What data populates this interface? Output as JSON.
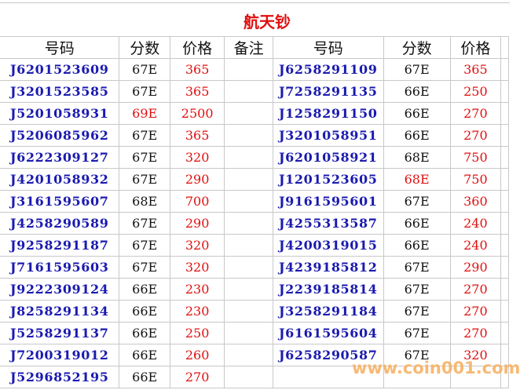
{
  "title": "航天钞",
  "headers": {
    "code": "号码",
    "score": "分数",
    "price": "价格",
    "note": "备注"
  },
  "left": [
    {
      "code": "J6201523609",
      "score": "67E",
      "price": "365"
    },
    {
      "code": "J3201523585",
      "score": "67E",
      "price": "365"
    },
    {
      "code": "J5201058931",
      "score": "69E",
      "price": "2500",
      "score_red": true
    },
    {
      "code": "J5206085962",
      "score": "67E",
      "price": "365"
    },
    {
      "code": "J6222309127",
      "score": "67E",
      "price": "320"
    },
    {
      "code": "J4201058932",
      "score": "67E",
      "price": "290"
    },
    {
      "code": "J3161595607",
      "score": "68E",
      "price": "700"
    },
    {
      "code": "J4258290589",
      "score": "67E",
      "price": "290"
    },
    {
      "code": "J9258291187",
      "score": "67E",
      "price": "320"
    },
    {
      "code": "J7161595603",
      "score": "67E",
      "price": "320"
    },
    {
      "code": "J9222309124",
      "score": "66E",
      "price": "230"
    },
    {
      "code": "J8258291134",
      "score": "66E",
      "price": "230"
    },
    {
      "code": "J5258291137",
      "score": "66E",
      "price": "250"
    },
    {
      "code": "J7200319012",
      "score": "66E",
      "price": "260"
    },
    {
      "code": "J5296852195",
      "score": "66E",
      "price": "270"
    }
  ],
  "right": [
    {
      "code": "J6258291109",
      "score": "67E",
      "price": "365"
    },
    {
      "code": "J7258291135",
      "score": "66E",
      "price": "250"
    },
    {
      "code": "J1258291150",
      "score": "66E",
      "price": "270"
    },
    {
      "code": "J3201058951",
      "score": "66E",
      "price": "270"
    },
    {
      "code": "J6201058921",
      "score": "68E",
      "price": "750"
    },
    {
      "code": "J1201523605",
      "score": "68E",
      "price": "750",
      "score_red": true
    },
    {
      "code": "J9161595601",
      "score": "67E",
      "price": "360"
    },
    {
      "code": "J4255313587",
      "score": "66E",
      "price": "240"
    },
    {
      "code": "J4200319015",
      "score": "66E",
      "price": "240"
    },
    {
      "code": "J4239185812",
      "score": "67E",
      "price": "290"
    },
    {
      "code": "J2239185814",
      "score": "67E",
      "price": "270"
    },
    {
      "code": "J3258291184",
      "score": "67E",
      "price": "270"
    },
    {
      "code": "J6161595604",
      "score": "67E",
      "price": "270"
    },
    {
      "code": "J6258290587",
      "score": "67E",
      "price": "320"
    }
  ],
  "watermark": "www.coin001.com",
  "colors": {
    "code": "#1a1ab0",
    "price": "#e01010",
    "title": "#e01010",
    "watermark": "#f7b265"
  }
}
